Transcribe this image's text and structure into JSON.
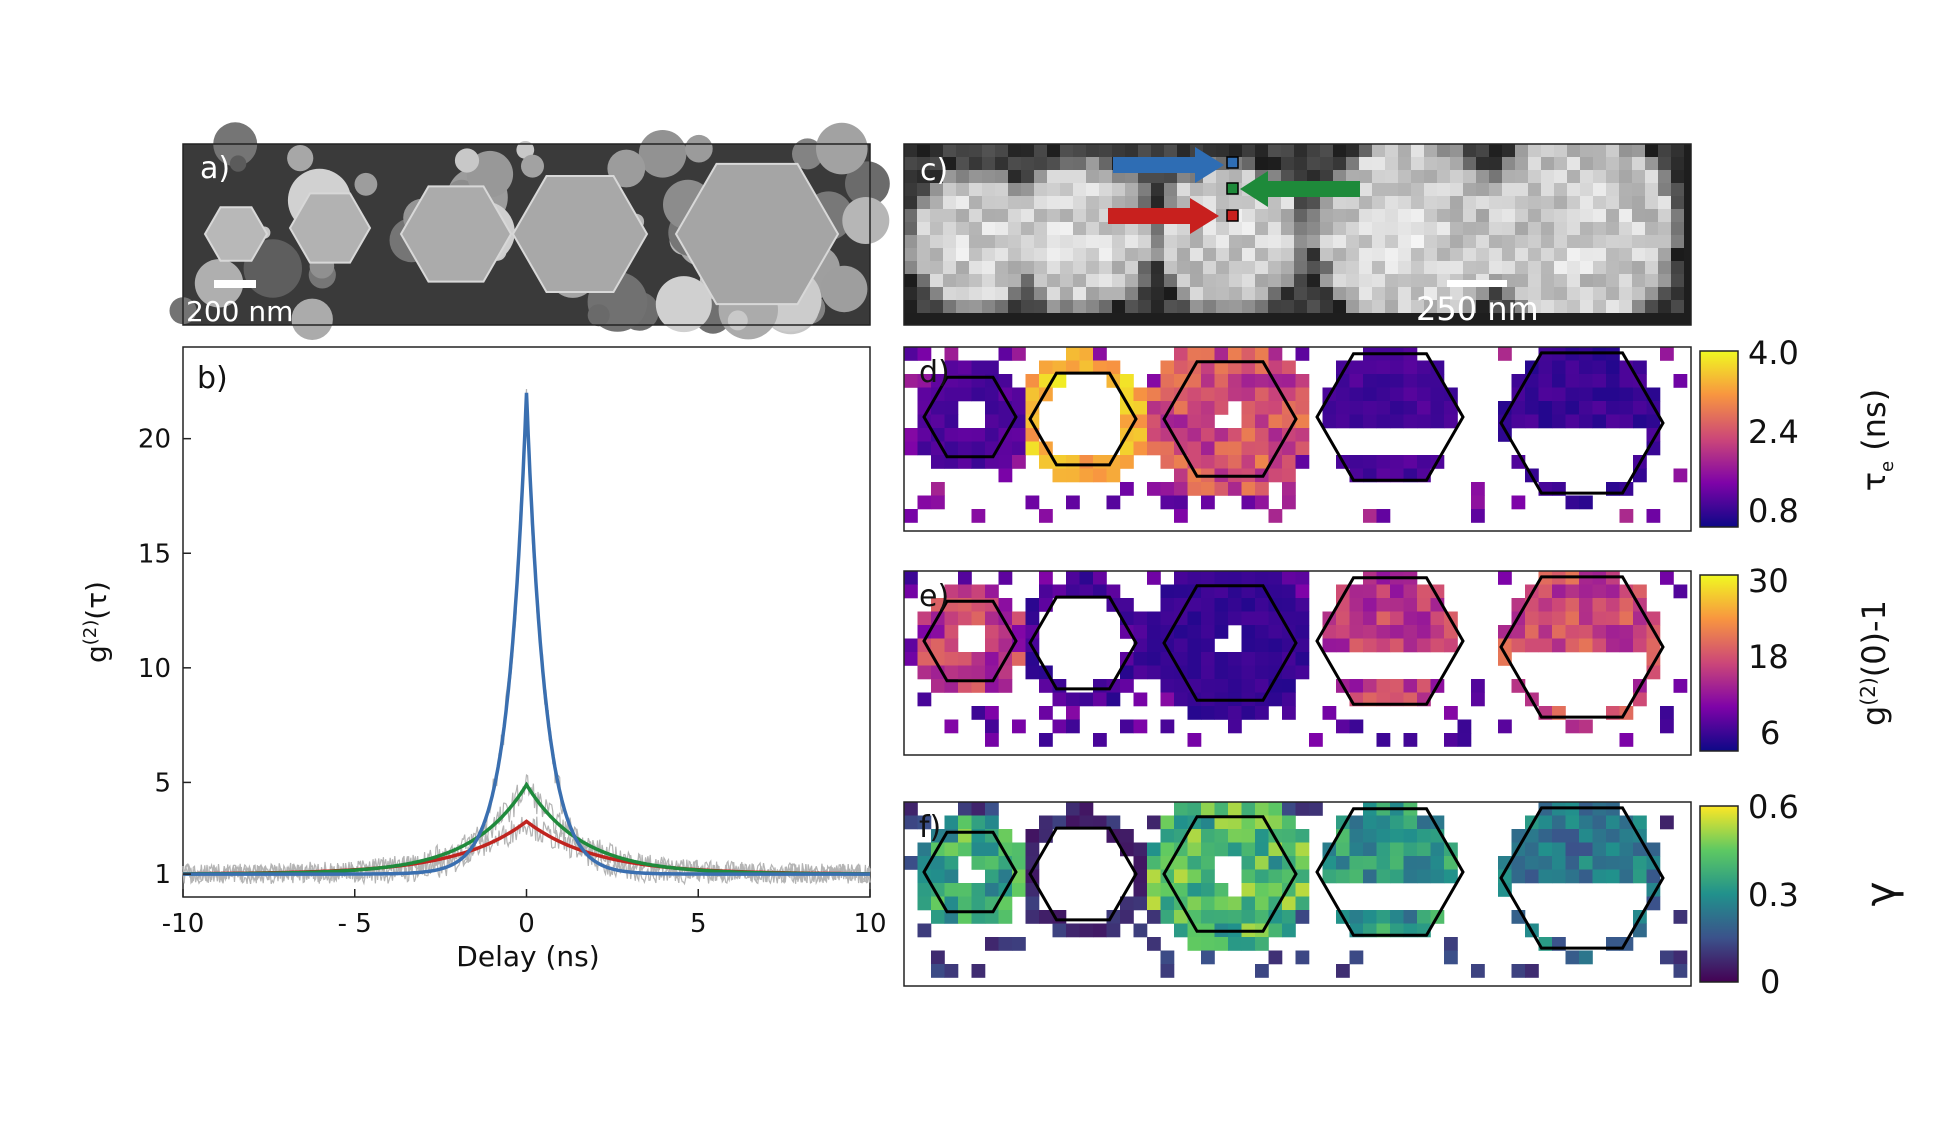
{
  "panels": {
    "a": {
      "label": "a)",
      "scale_bar": "200 nm"
    },
    "b": {
      "label": "b)"
    },
    "c": {
      "label": "c)",
      "scale_bar": "250 nm"
    },
    "d": {
      "label": "d)",
      "colorbar_ticks": [
        "4.0",
        "2.4",
        "0.8"
      ],
      "colorbar_label_main": "τ",
      "colorbar_label_sub": "e",
      "colorbar_label_unit": " (ns)",
      "colormap": "plasma"
    },
    "e": {
      "label": "e)",
      "colorbar_ticks": [
        "30",
        "18",
        "6"
      ],
      "colorbar_label_pre": "g",
      "colorbar_label_sup": "(2)",
      "colorbar_label_post": "(0)-1",
      "colormap": "plasma"
    },
    "f": {
      "label": "f)",
      "colorbar_ticks": [
        "0.6",
        "0.3",
        "0"
      ],
      "colorbar_label": "γ",
      "colormap": "viridis"
    }
  },
  "arrows": {
    "blue": "#2e6db4",
    "green": "#1e8a3a",
    "red": "#c8201e"
  },
  "chart_data": {
    "type": "line",
    "title": "",
    "xlabel": "Delay (ns)",
    "ylabel_pre": "g",
    "ylabel_sup": "(2)",
    "ylabel_post": "(τ)",
    "xlim": [
      -10,
      10
    ],
    "ylim": [
      0,
      24
    ],
    "xticks": [
      -10,
      -5,
      0,
      5,
      10
    ],
    "xtick_labels": [
      "-10",
      "- 5",
      "0",
      "5",
      "10"
    ],
    "yticks": [
      1,
      5,
      10,
      15,
      20
    ],
    "grid": false,
    "series": [
      {
        "color": "#3a6fb0",
        "peak": 22,
        "baseline": 1,
        "decay_ns": 0.55
      },
      {
        "color": "#1f8a3c",
        "peak": 4.9,
        "baseline": 1,
        "decay_ns": 1.6
      },
      {
        "color": "#c0241f",
        "peak": 3.3,
        "baseline": 1,
        "decay_ns": 2.0
      }
    ],
    "raw_data_color": "#b4b4b4"
  }
}
